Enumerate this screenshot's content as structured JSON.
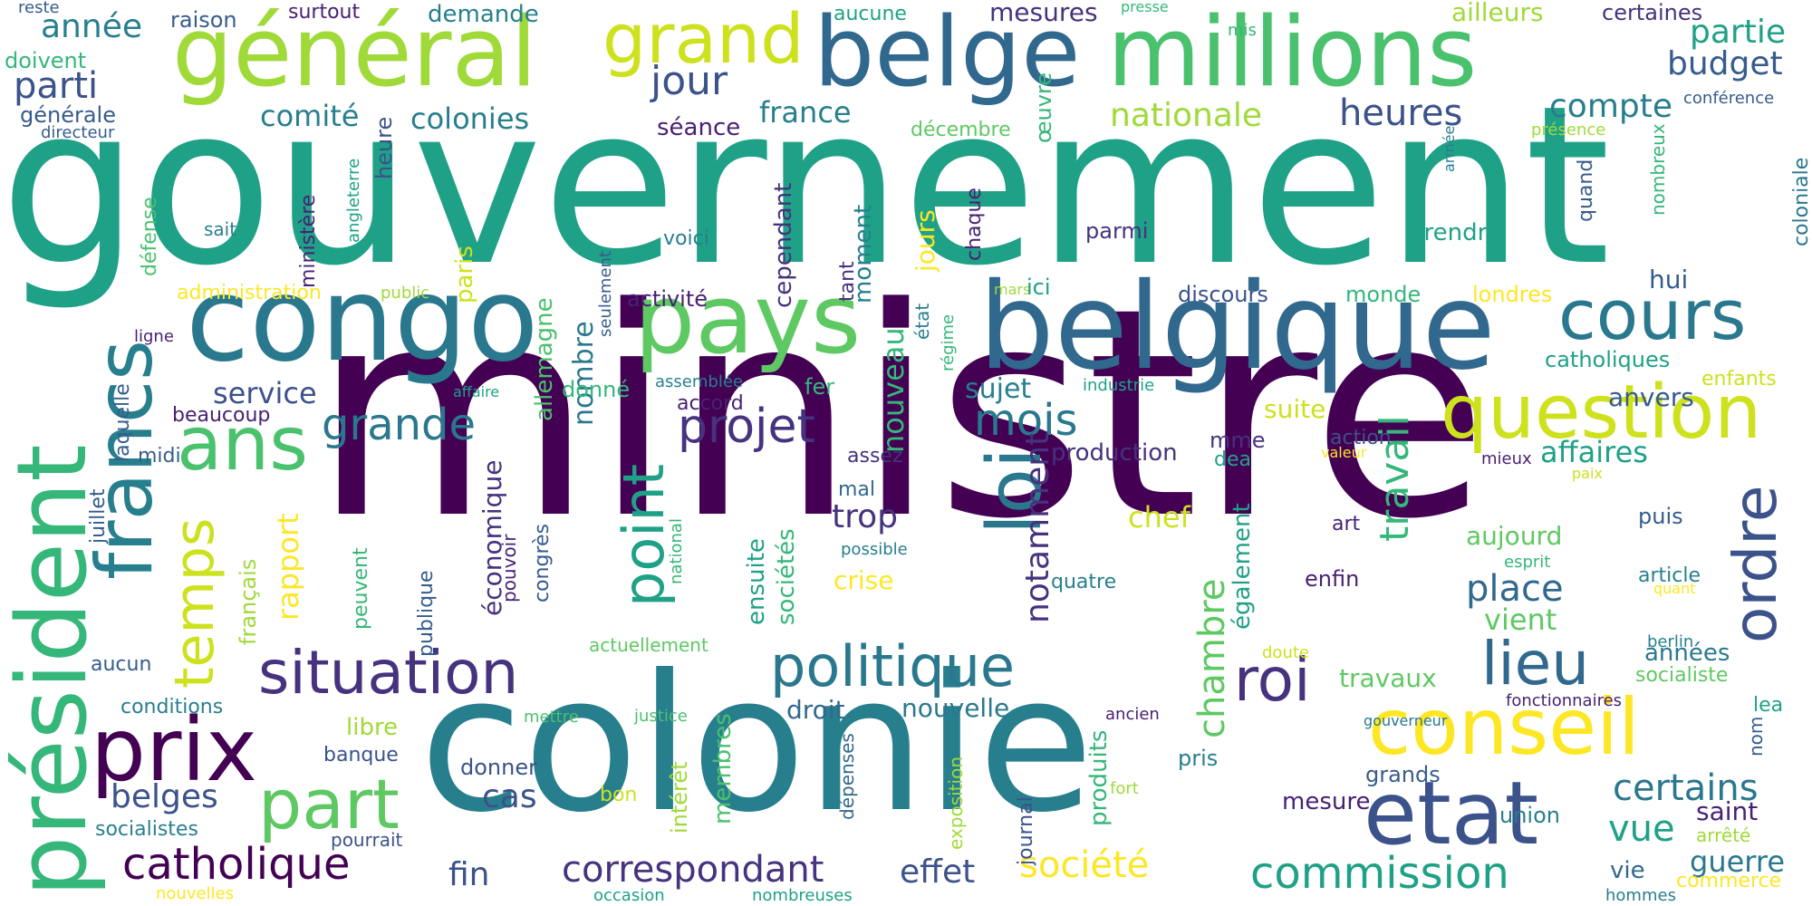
{
  "words": {
    "gouvernement": "gouvernement",
    "ministre": "ministre",
    "colonie": "colonie",
    "belgique": "belgique",
    "congo": "congo",
    "millions": "millions",
    "general": "général",
    "belge": "belge",
    "pays": "pays",
    "president": "président",
    "francs": "francs",
    "conseil": "conseil",
    "etat": "etat",
    "question": "question",
    "situation": "situation",
    "politique": "politique",
    "prix": "prix",
    "cours": "cours",
    "ans": "ans",
    "grand": "grand",
    "part": "part",
    "point": "point",
    "loi": "loi",
    "roi": "roi",
    "lieu": "lieu",
    "ordre": "ordre",
    "catholique": "catholique",
    "correspondant": "correspondant",
    "commission": "commission",
    "societe": "société",
    "projet": "projet",
    "temps": "temps",
    "grande": "grande",
    "mois": "mois",
    "jour": "jour",
    "parti": "parti",
    "heures": "heures",
    "nationale": "nationale",
    "comite": "comité",
    "colonies": "colonies",
    "france": "france",
    "service": "service",
    "chambre": "chambre",
    "travail": "travail",
    "annee": "année",
    "budget": "budget",
    "partie": "partie",
    "compte": "compte",
    "nouveau": "nouveau",
    "trop": "trop",
    "place": "place",
    "vue": "vue",
    "certains": "certains",
    "guerre": "guerre",
    "belges": "belges",
    "cas": "cas",
    "fin": "fin",
    "effet": "effet",
    "droit": "droit",
    "nouvelle": "nouvelle",
    "notamment": "notamment",
    "rapport": "rapport",
    "nombre": "nombre",
    "affaires": "affaires",
    "anvers": "anvers",
    "suite": "suite",
    "chef": "chef",
    "aujourd": "aujourd",
    "vient": "vient",
    "travaux": "travaux",
    "annees": "années",
    "ailleurs": "ailleurs",
    "certaines": "certaines",
    "mesures": "mesures",
    "surtout": "surtout",
    "raison": "raison",
    "demande": "demande",
    "aucune": "aucune",
    "reste": "reste",
    "doivent": "doivent",
    "generale": "générale",
    "directeur": "directeur",
    "seance": "séance",
    "decembre": "décembre",
    "conference": "conférence",
    "presence": "présence",
    "coloniale": "coloniale",
    "armee": "armée",
    "nombreux": "nombreux",
    "quand": "quand",
    "prendre": "prendre",
    "hui": "hui",
    "londres": "londres",
    "monde": "monde",
    "discours": "discours",
    "catholiques": "catholiques",
    "enfants": "enfants",
    "ministere": "ministère",
    "heure": "heure",
    "angleterre": "angleterre",
    "defense": "défense",
    "sait": "sait",
    "paris": "paris",
    "voici": "voici",
    "cependant": "cependant",
    "moment": "moment",
    "jours": "jours",
    "chaque": "chaque",
    "oeuvre": "œuvre",
    "parmi": "parmi",
    "tant": "tant",
    "activite": "activité",
    "administration": "administration",
    "public": "public",
    "ligne": "ligne",
    "seulement": "seulement",
    "allemagne": "allemagne",
    "mars": "mars",
    "ici": "ici",
    "regime": "régime",
    "etat_small": "état",
    "sujet": "sujet",
    "industrie": "industrie",
    "affaire": "affaire",
    "assemblee": "assemblée",
    "donne": "donné",
    "fer": "fer",
    "accord": "accord",
    "beaucoup": "beaucoup",
    "laquelle": "laquelle",
    "juillet": "juillet",
    "midi": "midi",
    "economique": "économique",
    "assez": "assez",
    "mal": "mal",
    "production": "production",
    "mme": "mme",
    "dea": "dea",
    "action": "action",
    "valeur": "valeur",
    "mieux": "mieux",
    "paix": "paix",
    "puis": "puis",
    "art": "art",
    "enfin": "enfin",
    "quatre": "quatre",
    "possible": "possible",
    "crise": "crise",
    "esprit": "esprit",
    "quant": "quant",
    "article": "article",
    "francais": "français",
    "congres": "congrès",
    "pouvoir": "pouvoir",
    "national": "national",
    "ensuite": "ensuite",
    "societes": "sociétés",
    "peuvent": "peuvent",
    "publique": "publique",
    "egalement": "également",
    "actuellement": "actuellement",
    "doute": "doute",
    "berlin": "berlin",
    "socialiste": "socialiste",
    "gouverneur": "gouverneur",
    "fonctionnaires": "fonctionnaires",
    "lea": "lea",
    "nom": "nom",
    "aucun": "aucun",
    "conditions": "conditions",
    "libre": "libre",
    "banque": "banque",
    "mettre": "mettre",
    "justice": "justice",
    "interet": "intérêt",
    "membres": "membres",
    "depenses": "dépenses",
    "exposition": "exposition",
    "journal": "journal",
    "produits": "produits",
    "ancien": "ancien",
    "pris": "pris",
    "fort": "fort",
    "grands": "grands",
    "union": "union",
    "mesure": "mesure",
    "donner": "donner",
    "bon": "bon",
    "socialistes": "socialistes",
    "pourrait": "pourrait",
    "saint": "saint",
    "arrete": "arrêté",
    "vie": "vie",
    "nouvelles": "nouvelles",
    "occasion": "occasion",
    "nombreuses": "nombreuses",
    "commerce": "commerce",
    "hommes": "hommes",
    "presse": "presse",
    "mis": "mis"
  }
}
